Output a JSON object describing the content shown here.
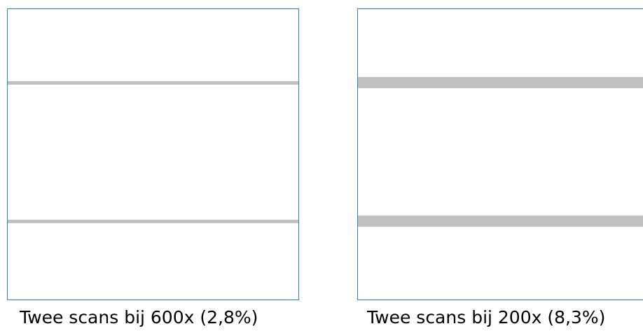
{
  "panels": [
    {
      "caption": "Twee scans bij 600x (2,8%)"
    },
    {
      "caption": "Twee scans bij 200x (8,3%)"
    }
  ]
}
